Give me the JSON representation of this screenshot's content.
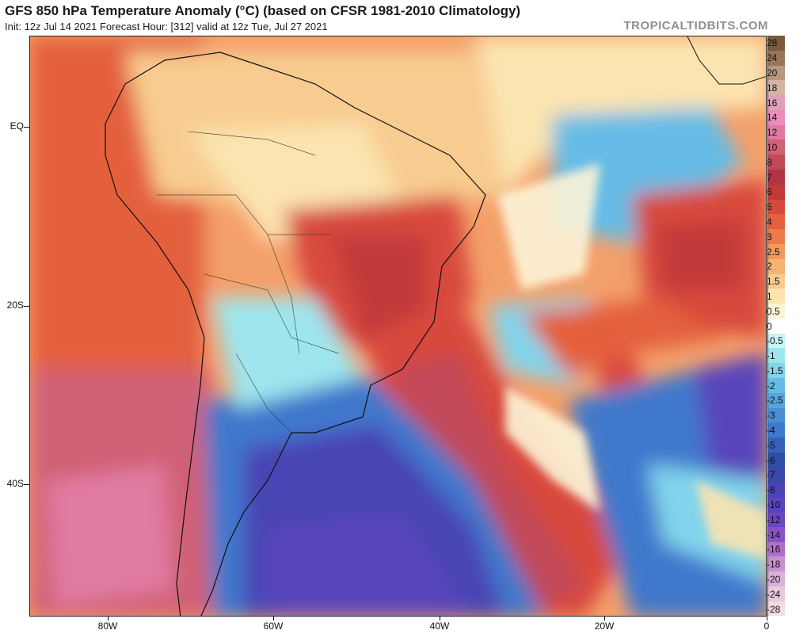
{
  "header": {
    "title": "GFS 850 hPa Temperature Anomaly (°C) (based on CFSR 1981-2010 Climatology)",
    "subtitle": "Init: 12z Jul 14 2021   Forecast Hour: [312]   valid at 12z Tue, Jul 27 2021",
    "site": "TROPICALTIDBITS.COM"
  },
  "axes": {
    "lat_labels": [
      "EQ",
      "20S",
      "40S"
    ],
    "lon_labels": [
      "80W",
      "60W",
      "40W",
      "20W",
      "0"
    ]
  },
  "colorbar": {
    "labels": [
      "28",
      "24",
      "20",
      "18",
      "16",
      "14",
      "12",
      "10",
      "8",
      "7",
      "6",
      "5",
      "4",
      "3",
      "2.5",
      "2",
      "1.5",
      "1",
      "0.5",
      "0",
      "-0.5",
      "-1",
      "-1.5",
      "-2",
      "-2.5",
      "-3",
      "-4",
      "-5",
      "-6",
      "-7",
      "-8",
      "-10",
      "-12",
      "-14",
      "-16",
      "-18",
      "-20",
      "-24",
      "-28"
    ],
    "colors": [
      "#7a5a3a",
      "#9a7658",
      "#b8967c",
      "#d4b4a2",
      "#e0a0b8",
      "#ec8cbc",
      "#e07aa0",
      "#d06076",
      "#c24858",
      "#b03444",
      "#c23a3a",
      "#d8483c",
      "#e4603e",
      "#ec7c48",
      "#f29a5c",
      "#f6b474",
      "#f8cc90",
      "#fbe4b0",
      "#fdf4d8",
      "#ffffff",
      "#c8f4f4",
      "#9ee6ee",
      "#82d4ec",
      "#66bce6",
      "#56a4de",
      "#4a8ed6",
      "#3f78cc",
      "#3762bc",
      "#2f4ea8",
      "#3a48a8",
      "#4a44b4",
      "#5844bc",
      "#6a46c0",
      "#8a52c4",
      "#b070c8",
      "#c890d0",
      "#dcb0d8",
      "#e8c8dc",
      "#f4dce6"
    ]
  }
}
